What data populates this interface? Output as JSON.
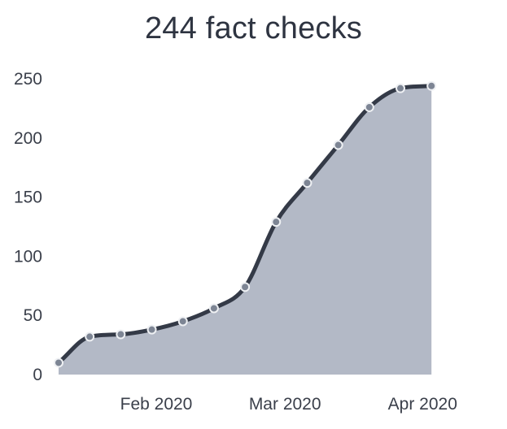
{
  "title": "244 fact checks",
  "colors": {
    "line": "#343a47",
    "area": "#b3b9c6",
    "point_fill": "#7d8594",
    "point_stroke": "#eef0f3",
    "text": "#2e3441"
  },
  "chart_data": {
    "type": "area",
    "title": "244 fact checks",
    "xlabel": "",
    "ylabel": "",
    "x_ticks": [
      {
        "label": "Feb 2020",
        "x": 11
      },
      {
        "label": "Mar 2020",
        "x": 40
      },
      {
        "label": "Apr 2020",
        "x": 71
      }
    ],
    "y_ticks": [
      0,
      50,
      100,
      150,
      200,
      250
    ],
    "xlim": [
      -11,
      88
    ],
    "ylim": [
      0,
      250
    ],
    "grid": false,
    "series": [
      {
        "name": "fact checks",
        "points": [
          {
            "x": -11,
            "y": 10
          },
          {
            "x": -4,
            "y": 32
          },
          {
            "x": 3,
            "y": 34
          },
          {
            "x": 10,
            "y": 38
          },
          {
            "x": 17,
            "y": 45
          },
          {
            "x": 24,
            "y": 56
          },
          {
            "x": 31,
            "y": 74
          },
          {
            "x": 38,
            "y": 129
          },
          {
            "x": 45,
            "y": 162
          },
          {
            "x": 52,
            "y": 194
          },
          {
            "x": 59,
            "y": 226
          },
          {
            "x": 66,
            "y": 242
          },
          {
            "x": 73,
            "y": 244
          }
        ]
      }
    ]
  }
}
